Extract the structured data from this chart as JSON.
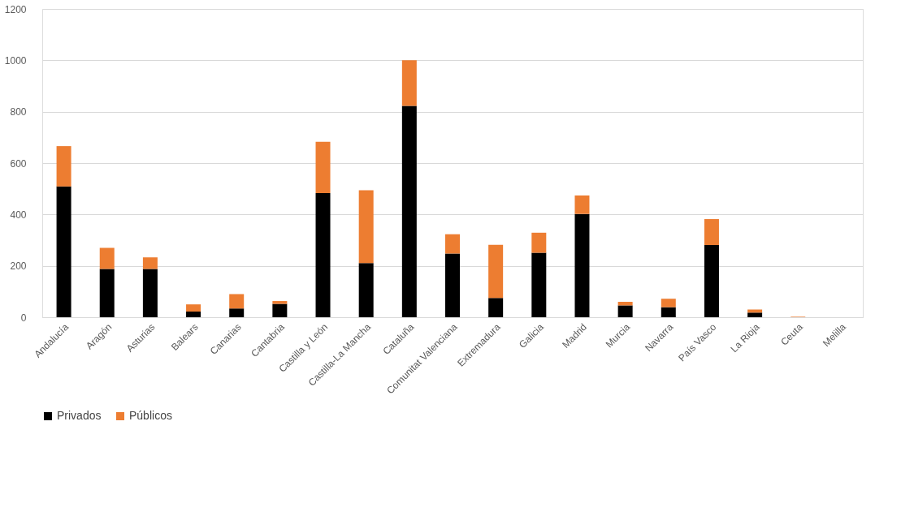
{
  "chart_data": {
    "type": "bar",
    "stacked": true,
    "categories": [
      "Andalucía",
      "Aragón",
      "Asturias",
      "Balears",
      "Canarias",
      "Cantabria",
      "Castilla y León",
      "Castilla-La Mancha",
      "Cataluña",
      "Comunitat Valenciana",
      "Extremadura",
      "Galicia",
      "Madrid",
      "Murcia",
      "Navarra",
      "País Vasco",
      "La Rioja",
      "Ceuta",
      "Melilla"
    ],
    "series": [
      {
        "name": "Privados",
        "color": "#000000",
        "values": [
          509,
          188,
          188,
          22,
          34,
          52,
          483,
          211,
          823,
          248,
          75,
          251,
          402,
          46,
          39,
          281,
          18,
          0,
          0
        ]
      },
      {
        "name": "Públicos",
        "color": "#ed7d31",
        "values": [
          157,
          82,
          45,
          28,
          56,
          11,
          200,
          283,
          177,
          75,
          207,
          78,
          72,
          14,
          33,
          101,
          12,
          2,
          0
        ]
      }
    ],
    "ylim": [
      0,
      1200
    ],
    "yticks": [
      0,
      200,
      400,
      600,
      800,
      1000,
      1200
    ],
    "grid": "y",
    "legend": "bottom"
  }
}
